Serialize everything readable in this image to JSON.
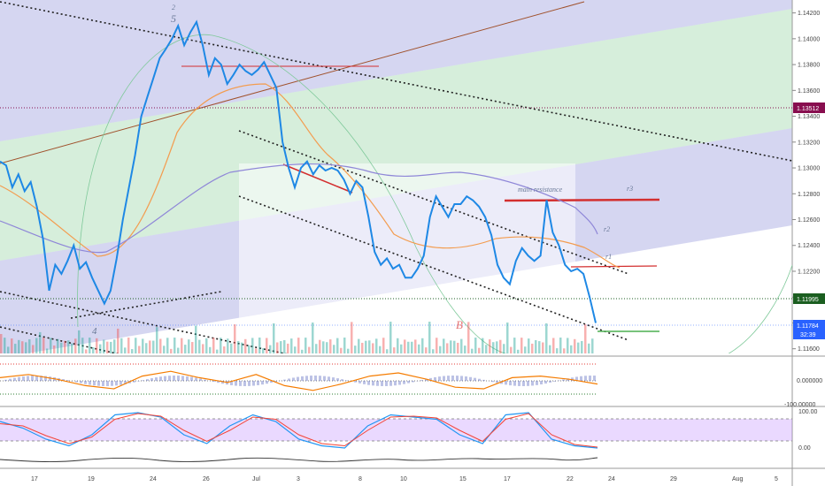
{
  "chart_data": [
    {
      "type": "line",
      "panel": "price",
      "y_axis": {
        "side": "right",
        "ticks": [
          "1.14200",
          "1.14000",
          "1.13800",
          "1.13600",
          "1.13400",
          "1.13200",
          "1.13000",
          "1.12800",
          "1.12600",
          "1.12400",
          "1.12200",
          "1.12000",
          "1.11800",
          "1.11600"
        ],
        "ylim": [
          1.1155,
          1.143
        ]
      },
      "x_axis": {
        "ticks": [
          "17",
          "19",
          "24",
          "26",
          "Jul",
          "3",
          "8",
          "10",
          "15",
          "17",
          "22",
          "24",
          "29",
          "Aug",
          "5"
        ]
      },
      "price_labels": [
        {
          "value": "1.13512",
          "color": "#880e4f"
        },
        {
          "value": "1.11995",
          "color": "#1b5e20"
        },
        {
          "value": "1.11784",
          "color": "#2962ff"
        },
        {
          "value": "32:39",
          "color": "#2962ff"
        }
      ],
      "price_line": {
        "name": "EURUSD",
        "color": "#1e88e5",
        "values": [
          1.1305,
          1.1302,
          1.1285,
          1.1295,
          1.1282,
          1.1289,
          1.127,
          1.1245,
          1.1205,
          1.1225,
          1.1218,
          1.1228,
          1.124,
          1.1222,
          1.1227,
          1.1215,
          1.1205,
          1.1195,
          1.1205,
          1.123,
          1.126,
          1.1285,
          1.131,
          1.134,
          1.1355,
          1.137,
          1.1385,
          1.1392,
          1.14,
          1.141,
          1.1395,
          1.1405,
          1.1413,
          1.1395,
          1.1372,
          1.1385,
          1.138,
          1.1365,
          1.1372,
          1.138,
          1.1375,
          1.1372,
          1.1376,
          1.1382,
          1.1372,
          1.1362,
          1.132,
          1.13,
          1.1285,
          1.13,
          1.1305,
          1.1295,
          1.1302,
          1.1298,
          1.13,
          1.1298,
          1.1291,
          1.128,
          1.129,
          1.1285,
          1.1262,
          1.1235,
          1.1225,
          1.123,
          1.1222,
          1.1225,
          1.1215,
          1.1215,
          1.1222,
          1.1232,
          1.1262,
          1.1278,
          1.127,
          1.1262,
          1.1272,
          1.1272,
          1.1278,
          1.1275,
          1.127,
          1.1262,
          1.1248,
          1.1225,
          1.1215,
          1.121,
          1.1228,
          1.1238,
          1.1232,
          1.1228,
          1.1232,
          1.1275,
          1.125,
          1.124,
          1.1225,
          1.122,
          1.1222,
          1.1218,
          1.12,
          1.118
        ],
        "x_dates": "Jun 12 – Jul 23, 4-hour closes (approx.)"
      },
      "lines": [
        {
          "name": "main resistance",
          "value": 1.128,
          "label": "main resistance"
        },
        {
          "name": "r3",
          "value": 1.128,
          "label": "r3"
        },
        {
          "name": "r2",
          "value": 1.1255,
          "label": "r2"
        },
        {
          "name": "r1",
          "value": 1.1225,
          "label": "r1"
        },
        {
          "name": "level",
          "value": 1.13512
        },
        {
          "name": "level",
          "value": 1.11995
        }
      ],
      "annotations": [
        "2",
        "5",
        "4",
        "B",
        "r1",
        "r2",
        "r3",
        "main resistance"
      ]
    },
    {
      "type": "line",
      "panel": "oscillator-1",
      "y_ticks": [
        "0.000000",
        "-100.00000"
      ],
      "series": [
        {
          "values": [
            0.2,
            0.4,
            0.1,
            -0.3,
            -0.5,
            0.3,
            0.6,
            0.2,
            -0.1,
            0.4,
            -0.3,
            -0.6,
            -0.2,
            0.3,
            0.5,
            0.1,
            -0.4,
            -0.5,
            0.2,
            0.3,
            0.1,
            -0.2
          ]
        }
      ]
    },
    {
      "type": "line",
      "panel": "stochastic",
      "y_ticks": [
        "100.00",
        "0.00"
      ],
      "ylim": [
        0,
        100
      ],
      "bands": [
        80,
        20
      ],
      "series": [
        {
          "values": [
            70,
            55,
            30,
            15,
            40,
            85,
            90,
            80,
            40,
            20,
            60,
            85,
            70,
            30,
            15,
            10,
            60,
            85,
            80,
            75,
            40,
            20,
            85,
            90,
            30,
            15,
            10
          ]
        },
        {
          "values": [
            65,
            60,
            38,
            20,
            35,
            75,
            88,
            82,
            50,
            25,
            50,
            80,
            75,
            40,
            20,
            15,
            50,
            80,
            82,
            78,
            50,
            25,
            75,
            88,
            40,
            18,
            12
          ]
        }
      ]
    },
    {
      "type": "line",
      "panel": "momentum"
    }
  ],
  "colors": {
    "price": "#1e88e5",
    "orange_ma": "#f39c4f",
    "purple_ma": "#8f87d8",
    "red_line": "#d32f2f",
    "green_fill": "rgba(118,200,135,0.28)",
    "blue_fill": "rgba(116,120,210,0.28)",
    "stoch_fill": "rgba(180,120,255,0.28)"
  }
}
